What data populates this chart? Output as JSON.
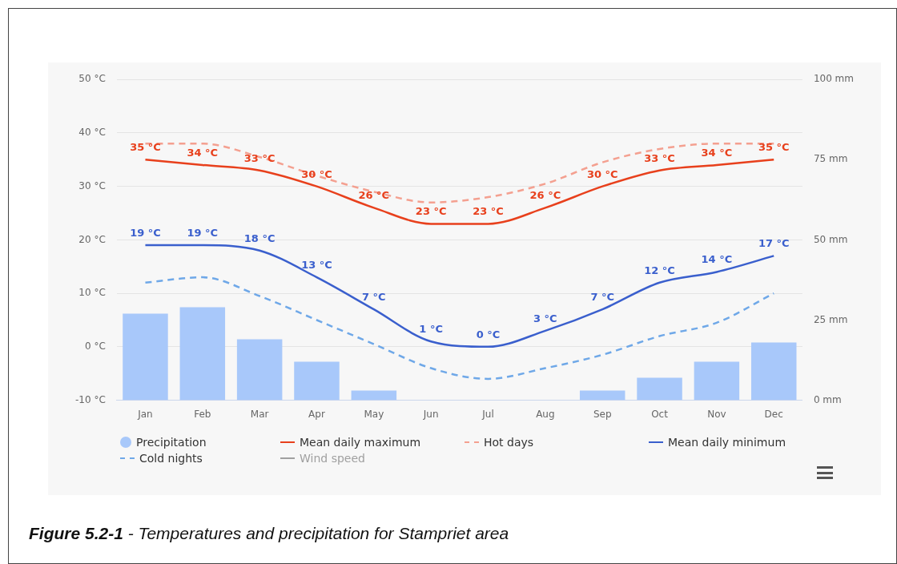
{
  "chart_data": {
    "type": "line",
    "categories": [
      "Jan",
      "Feb",
      "Mar",
      "Apr",
      "May",
      "Jun",
      "Jul",
      "Aug",
      "Sep",
      "Oct",
      "Nov",
      "Dec"
    ],
    "series": [
      {
        "name": "Precipitation",
        "type": "bar",
        "axis": "y2",
        "color": "#a8c8fa",
        "values": [
          27,
          29,
          19,
          12,
          3,
          0,
          0,
          0,
          3,
          7,
          12,
          18
        ]
      },
      {
        "name": "Mean daily maximum",
        "color": "#e8401c",
        "line_style": "solid",
        "values": [
          35,
          34,
          33,
          30,
          26,
          23,
          23,
          26,
          30,
          33,
          34,
          35
        ],
        "value_labels": [
          "35 °C",
          "34 °C",
          "33 °C",
          "30 °C",
          "26 °C",
          "23 °C",
          "23 °C",
          "26 °C",
          "30 °C",
          "33 °C",
          "34 °C",
          "35 °C"
        ]
      },
      {
        "name": "Hot days",
        "color": "#f4a090",
        "line_style": "dashed",
        "values": [
          38,
          38,
          35.5,
          32,
          29,
          27,
          28,
          30.5,
          34.5,
          37,
          38,
          38
        ]
      },
      {
        "name": "Mean daily minimum",
        "color": "#3a5fcd",
        "line_style": "solid",
        "values": [
          19,
          19,
          18,
          13,
          7,
          1,
          0,
          3,
          7,
          12,
          14,
          17
        ],
        "value_labels": [
          "19 °C",
          "19 °C",
          "18 °C",
          "13 °C",
          "7 °C",
          "1 °C",
          "0 °C",
          "3 °C",
          "7 °C",
          "12 °C",
          "14 °C",
          "17 °C"
        ]
      },
      {
        "name": "Cold nights",
        "color": "#6fa8e8",
        "line_style": "dashed",
        "values": [
          12,
          13,
          9.5,
          5,
          0.5,
          -4,
          -6,
          -4,
          -1.5,
          2,
          4.5,
          10
        ]
      },
      {
        "name": "Wind speed",
        "color": "#a0a0a0",
        "line_style": "solid",
        "values": [
          null,
          null,
          null,
          null,
          null,
          null,
          null,
          null,
          null,
          null,
          null,
          null
        ]
      }
    ],
    "ylim": [
      -10,
      50
    ],
    "yticks": [
      {
        "value": -10,
        "label": "-10 °C"
      },
      {
        "value": 0,
        "label": "0 °C"
      },
      {
        "value": 10,
        "label": "10 °C"
      },
      {
        "value": 20,
        "label": "20 °C"
      },
      {
        "value": 30,
        "label": "30 °C"
      },
      {
        "value": 40,
        "label": "40 °C"
      },
      {
        "value": 50,
        "label": "50 °C"
      }
    ],
    "y2lim": [
      0,
      100
    ],
    "y2ticks": [
      {
        "value": 0,
        "label": "0 mm"
      },
      {
        "value": 25,
        "label": "25 mm"
      },
      {
        "value": 50,
        "label": "50 mm"
      },
      {
        "value": 75,
        "label": "75 mm"
      },
      {
        "value": 100,
        "label": "100 mm"
      }
    ],
    "grid": "y",
    "legend": "bottom",
    "marker": "none",
    "annotations": [
      "Figure 5.2-1 - Temperatures and precipitation for Stampriet area"
    ]
  }
}
